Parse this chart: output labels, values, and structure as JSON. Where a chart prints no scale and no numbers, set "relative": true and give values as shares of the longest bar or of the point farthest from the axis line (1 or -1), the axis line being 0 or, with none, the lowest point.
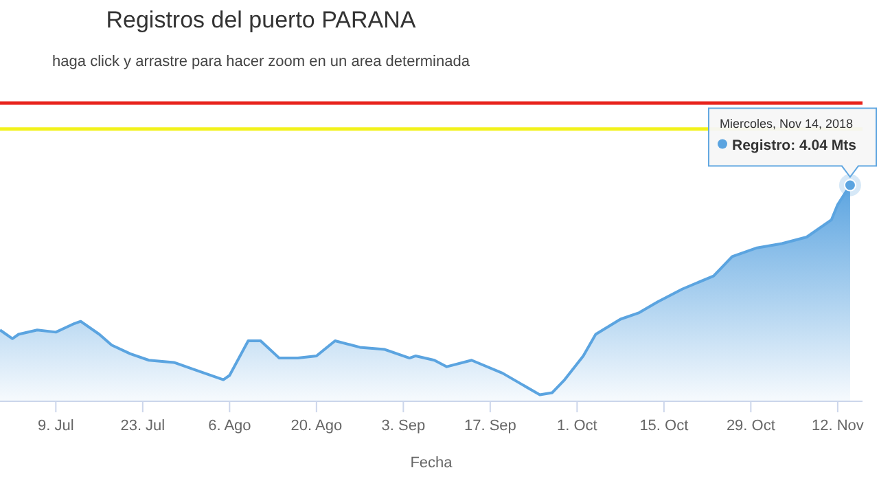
{
  "chart_data": {
    "type": "area",
    "title": "Registros del puerto PARANA",
    "subtitle": "haga click y arrastre para hacer zoom en un area determinada",
    "xlabel": "Fecha",
    "relative": true,
    "x": [
      "2018-06-30",
      "2018-07-02",
      "2018-07-03",
      "2018-07-06",
      "2018-07-09",
      "2018-07-12",
      "2018-07-13",
      "2018-07-16",
      "2018-07-18",
      "2018-07-21",
      "2018-07-24",
      "2018-07-28",
      "2018-07-31",
      "2018-08-05",
      "2018-08-06",
      "2018-08-09",
      "2018-08-11",
      "2018-08-14",
      "2018-08-17",
      "2018-08-20",
      "2018-08-23",
      "2018-08-27",
      "2018-08-31",
      "2018-09-04",
      "2018-09-05",
      "2018-09-08",
      "2018-09-10",
      "2018-09-14",
      "2018-09-19",
      "2018-09-25",
      "2018-09-27",
      "2018-09-29",
      "2018-10-02",
      "2018-10-04",
      "2018-10-08",
      "2018-10-11",
      "2018-10-14",
      "2018-10-18",
      "2018-10-23",
      "2018-10-26",
      "2018-10-30",
      "2018-11-03",
      "2018-11-07",
      "2018-11-11",
      "2018-11-12",
      "2018-11-14"
    ],
    "series": [
      {
        "color": "#5ba4e0",
        "values": [
          0.33,
          0.29,
          0.31,
          0.33,
          0.32,
          0.36,
          0.37,
          0.31,
          0.26,
          0.22,
          0.19,
          0.18,
          0.15,
          0.1,
          0.12,
          0.28,
          0.28,
          0.2,
          0.2,
          0.21,
          0.28,
          0.25,
          0.24,
          0.2,
          0.21,
          0.19,
          0.16,
          0.19,
          0.13,
          0.03,
          0.04,
          0.1,
          0.21,
          0.31,
          0.38,
          0.41,
          0.46,
          0.52,
          0.58,
          0.67,
          0.71,
          0.73,
          0.76,
          0.84,
          0.91,
          1.0
        ]
      }
    ],
    "xlim": [
      "2018-06-30",
      "2018-11-16"
    ],
    "xticks": [
      {
        "value": "2018-07-09",
        "label": "9. Jul"
      },
      {
        "value": "2018-07-23",
        "label": "23. Jul"
      },
      {
        "value": "2018-08-06",
        "label": "6. Ago"
      },
      {
        "value": "2018-08-20",
        "label": "20. Ago"
      },
      {
        "value": "2018-09-03",
        "label": "3. Sep"
      },
      {
        "value": "2018-09-17",
        "label": "17. Sep"
      },
      {
        "value": "2018-10-01",
        "label": "1. Oct"
      },
      {
        "value": "2018-10-15",
        "label": "15. Oct"
      },
      {
        "value": "2018-10-29",
        "label": "29. Oct"
      },
      {
        "value": "2018-11-12",
        "label": "12. Nov"
      }
    ],
    "ref_lines": [
      {
        "axis": "y",
        "value": 1.38,
        "color": "#e8231c"
      },
      {
        "axis": "y",
        "value": 1.26,
        "color": "#f2f21c"
      }
    ],
    "annotations": [
      "Miercoles, Nov 14, 2018",
      {
        "text": "Registro: 4.04 Mts",
        "x": "2018-11-14",
        "y": 1
      }
    ]
  }
}
